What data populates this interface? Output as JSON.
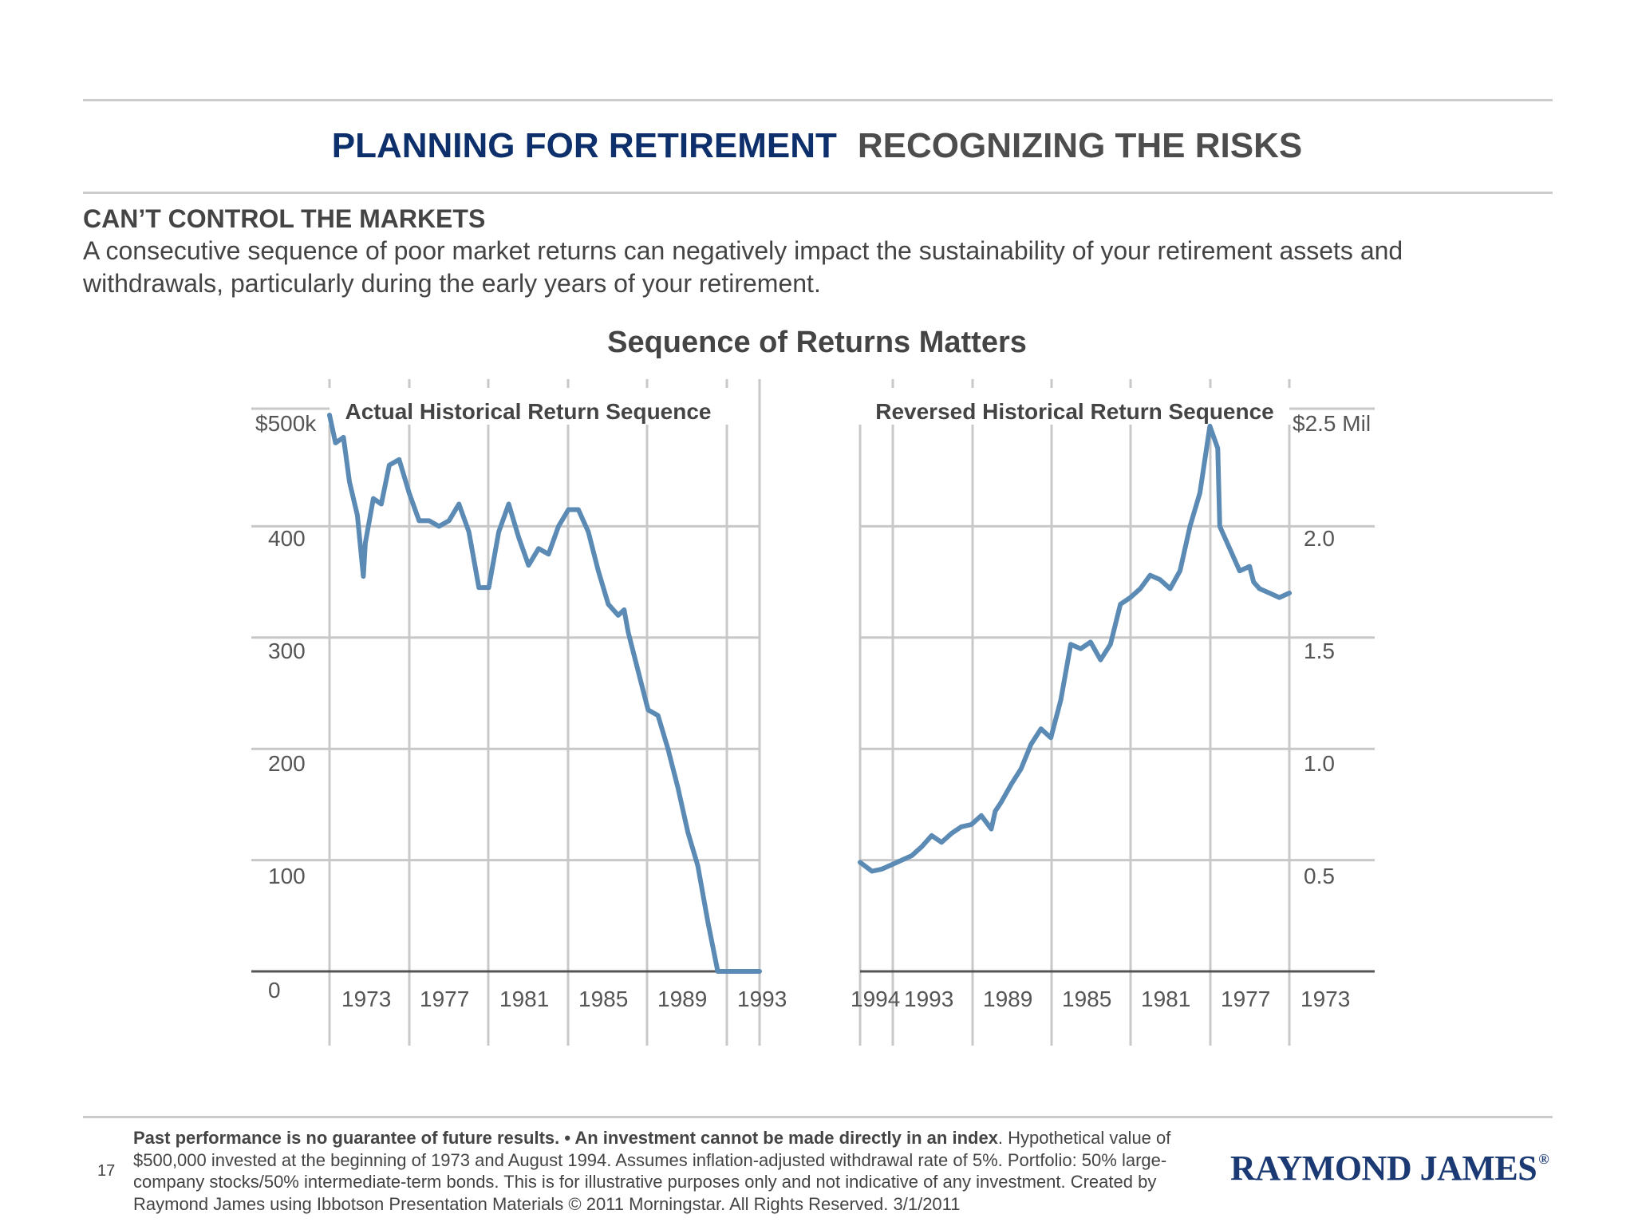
{
  "header": {
    "title_primary": "PLANNING FOR RETIREMENT",
    "title_secondary": "RECOGNIZING THE RISKS"
  },
  "section": {
    "heading": "CAN’T CONTROL THE MARKETS",
    "body": "A consecutive sequence of poor market returns can negatively impact the sustainability of your retirement assets and withdrawals, particularly during the early years of your retirement."
  },
  "chart_data": [
    {
      "type": "line",
      "title": "Sequence of Returns Matters",
      "subtitle": "Actual Historical Return Sequence",
      "y_tick_labels": [
        "0",
        "100",
        "200",
        "300",
        "400",
        "$500k"
      ],
      "ylim": [
        0,
        500
      ],
      "x_tick_labels": [
        "1973",
        "1977",
        "1981",
        "1985",
        "1989",
        "1993"
      ],
      "xlim": [
        1973.0,
        1994.6
      ],
      "grid": true,
      "color": "#5b8bb5",
      "series": [
        {
          "x": [
            1973.0,
            1973.3,
            1973.7,
            1974.0,
            1974.4,
            1974.7,
            1974.8,
            1975.2,
            1975.6,
            1976.0,
            1976.5,
            1977.0,
            1977.5,
            1978.0,
            1978.5,
            1979.0,
            1979.5,
            1980.0,
            1980.5,
            1981.0,
            1981.5,
            1982.0,
            1982.5,
            1983.0,
            1983.5,
            1984.0,
            1984.5,
            1985.0,
            1985.5,
            1986.0,
            1986.5,
            1987.0,
            1987.5,
            1987.8,
            1988.0,
            1988.5,
            1989.0,
            1989.5,
            1990.0,
            1990.5,
            1991.0,
            1991.5,
            1992.0,
            1992.5,
            1993.0,
            1993.5,
            1994.0,
            1994.6
          ],
          "values": [
            500,
            475,
            480,
            440,
            410,
            355,
            385,
            425,
            420,
            455,
            460,
            430,
            405,
            405,
            400,
            405,
            420,
            395,
            345,
            345,
            395,
            420,
            390,
            365,
            380,
            375,
            400,
            415,
            415,
            395,
            360,
            330,
            320,
            325,
            305,
            270,
            235,
            230,
            200,
            165,
            125,
            95,
            45,
            0,
            0,
            0,
            0,
            0
          ]
        }
      ]
    },
    {
      "type": "line",
      "subtitle": "Reversed Historical Return Sequence",
      "y_tick_labels": [
        "0.5",
        "1.0",
        "1.5",
        "2.0",
        "$2.5 Mil"
      ],
      "ylim": [
        0,
        2.5
      ],
      "x_tick_labels": [
        "1994",
        "1993",
        "1989",
        "1985",
        "1981",
        "1977",
        "1973"
      ],
      "xlim_reversed": [
        1994.6,
        1973.0
      ],
      "grid": true,
      "color": "#5b8bb5",
      "series": [
        {
          "x": [
            1994.6,
            1994.0,
            1993.5,
            1993.0,
            1992.5,
            1992.0,
            1991.5,
            1991.0,
            1990.5,
            1990.0,
            1989.5,
            1989.0,
            1988.5,
            1988.0,
            1987.8,
            1987.5,
            1987.0,
            1986.5,
            1986.0,
            1985.5,
            1985.0,
            1984.5,
            1984.0,
            1983.5,
            1983.0,
            1982.5,
            1982.0,
            1981.5,
            1981.0,
            1980.5,
            1980.0,
            1979.5,
            1979.0,
            1978.5,
            1978.0,
            1977.5,
            1977.0,
            1976.6,
            1976.5,
            1976.0,
            1975.5,
            1975.0,
            1974.8,
            1974.5,
            1974.0,
            1973.5,
            1973.0
          ],
          "values": [
            0.49,
            0.45,
            0.46,
            0.48,
            0.5,
            0.52,
            0.56,
            0.61,
            0.58,
            0.62,
            0.65,
            0.66,
            0.7,
            0.64,
            0.72,
            0.76,
            0.84,
            0.91,
            1.02,
            1.09,
            1.05,
            1.22,
            1.47,
            1.45,
            1.48,
            1.4,
            1.47,
            1.65,
            1.68,
            1.72,
            1.78,
            1.76,
            1.72,
            1.8,
            2.0,
            2.15,
            2.45,
            2.35,
            2.0,
            1.9,
            1.8,
            1.82,
            1.75,
            1.72,
            1.7,
            1.68,
            1.7
          ]
        }
      ]
    }
  ],
  "footer": {
    "page_number": "17",
    "footnote_bold": "Past performance is no guarantee of future results. • An investment cannot be made directly in an index",
    "footnote_rest": ". Hypothetical value of $500,000 invested at the beginning of 1973 and August 1994. Assumes inflation-adjusted withdrawal rate of 5%. Portfolio: 50% large-company stocks/50% intermediate-term bonds. This is for illustrative purposes only and not indicative of any investment. Created by Raymond James using Ibbotson Presentation Materials © 2011 Morningstar. All Rights Reserved. 3/1/2011",
    "logo_text": "RAYMOND JAMES",
    "logo_mark": "®"
  }
}
